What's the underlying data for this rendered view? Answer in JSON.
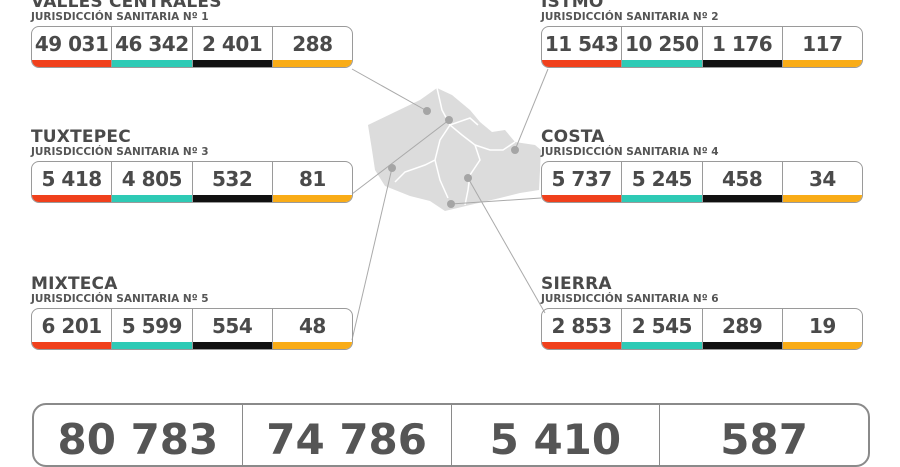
{
  "colors": {
    "confirmed": "#f0401c",
    "recovered": "#2ecab5",
    "deaths": "#111111",
    "active": "#f9ac17"
  },
  "regions": [
    {
      "name": "VALLES CENTRALES",
      "sub": "JURISDICCIÓN SANITARIA Nº 1",
      "values": [
        "49 031",
        "46 342",
        "2 401",
        "288"
      ]
    },
    {
      "name": "ISTMO",
      "sub": "JURISDICCIÓN SANITARIA Nº 2",
      "values": [
        "11 543",
        "10 250",
        "1 176",
        "117"
      ]
    },
    {
      "name": "TUXTEPEC",
      "sub": "JURISDICCIÓN SANITARIA Nº 3",
      "values": [
        "5 418",
        "4 805",
        "532",
        "81"
      ]
    },
    {
      "name": "COSTA",
      "sub": "JURISDICCIÓN SANITARIA Nº 4",
      "values": [
        "5 737",
        "5 245",
        "458",
        "34"
      ]
    },
    {
      "name": "MIXTECA",
      "sub": "JURISDICCIÓN SANITARIA Nº 5",
      "values": [
        "6 201",
        "5 599",
        "554",
        "48"
      ]
    },
    {
      "name": "SIERRA",
      "sub": "JURISDICCIÓN SANITARIA Nº 6",
      "values": [
        "2 853",
        "2 545",
        "289",
        "19"
      ]
    }
  ],
  "totals": [
    "80 783",
    "74 786",
    "5 410",
    "587"
  ]
}
